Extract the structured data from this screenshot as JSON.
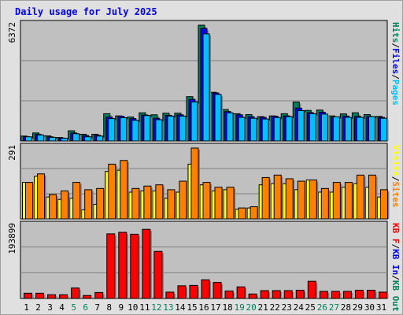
{
  "chart_data": {
    "title": "Daily usage for July 2025",
    "type": "bar",
    "categories": [
      "1",
      "2",
      "3",
      "4",
      "5",
      "6",
      "7",
      "8",
      "9",
      "10",
      "11",
      "12",
      "13",
      "14",
      "15",
      "16",
      "17",
      "18",
      "19",
      "20",
      "21",
      "22",
      "23",
      "24",
      "25",
      "26",
      "27",
      "28",
      "29",
      "30",
      "31"
    ],
    "weekend_categories": [
      "5",
      "6",
      "12",
      "13",
      "19",
      "20",
      "26",
      "27"
    ],
    "panels": [
      {
        "id": "top",
        "ymax_label": "6372",
        "ymax": 6372,
        "axis_labels": [
          "Hits",
          "/",
          "Files",
          "/",
          "Pages"
        ],
        "axis_label_colors": [
          "#00805c",
          "#000000",
          "#0000ff",
          "#000000",
          "#00c0ff"
        ],
        "series": [
          {
            "name": "Hits",
            "color": "#00805c",
            "values": [
              270,
              440,
              280,
              190,
              560,
              370,
              370,
              1500,
              1380,
              1320,
              1550,
              1440,
              1530,
              1530,
              2440,
              6372,
              2680,
              1730,
              1500,
              1450,
              1340,
              1380,
              1500,
              2140,
              1680,
              1700,
              1380,
              1490,
              1550,
              1450,
              1350
            ]
          },
          {
            "name": "Files",
            "color": "#0000ff",
            "values": [
              230,
              360,
              230,
              160,
              440,
              300,
              310,
              1320,
              1360,
              1230,
              1430,
              1250,
              1410,
              1440,
              2290,
              6190,
              2640,
              1620,
              1440,
              1330,
              1300,
              1360,
              1380,
              1810,
              1560,
              1580,
              1300,
              1370,
              1350,
              1350,
              1300
            ]
          },
          {
            "name": "Pages",
            "color": "#00c0ff",
            "values": [
              230,
              330,
              200,
              150,
              400,
              230,
              270,
              1230,
              1280,
              1140,
              1400,
              1170,
              1370,
              1370,
              2150,
              5900,
              2560,
              1550,
              1300,
              1250,
              1210,
              1290,
              1340,
              1670,
              1500,
              1480,
              1330,
              1300,
              1300,
              1340,
              1250
            ]
          }
        ]
      },
      {
        "id": "mid",
        "ymax_label": "291",
        "ymax": 291,
        "axis_labels": [
          "Visits",
          "/",
          "Sites"
        ],
        "axis_label_colors": [
          "#ffff00",
          "#000000",
          "#ff8000"
        ],
        "series": [
          {
            "name": "Visits",
            "color": "#ffff00",
            "values": [
              150,
              175,
              90,
              80,
              85,
              37,
              60,
              195,
              200,
              110,
              115,
              115,
              85,
              110,
              225,
              140,
              115,
              120,
              40,
              45,
              140,
              145,
              145,
              120,
              160,
              110,
              110,
              130,
              145,
              130,
              90
            ]
          },
          {
            "name": "Sites",
            "color": "#ff8000",
            "values": [
              150,
              185,
              100,
              115,
              150,
              120,
              125,
              225,
              240,
              125,
              135,
              140,
              120,
              155,
              291,
              150,
              130,
              130,
              45,
              50,
              170,
              180,
              165,
              155,
              160,
              125,
              150,
              150,
              180,
              180,
              120
            ]
          }
        ]
      },
      {
        "id": "bot",
        "ymax_label": "193899",
        "ymax": 193899,
        "axis_labels": [
          "KB F",
          "/",
          "KB In",
          "/",
          "KB Out"
        ],
        "axis_label_colors": [
          "#ff0000",
          "#000000",
          "#0000ff",
          "#000000",
          "#00805c"
        ],
        "series": [
          {
            "name": "KB F",
            "color": "#ff0000",
            "values": [
              14000,
              14000,
              10000,
              10000,
              28000,
              8000,
              16000,
              173000,
              177000,
              172000,
              185000,
              126000,
              17000,
              34000,
              35000,
              50000,
              43000,
              20000,
              31000,
              12000,
              21000,
              21000,
              21000,
              22000,
              46000,
              19000,
              19000,
              19000,
              22000,
              22000,
              17000
            ]
          }
        ]
      }
    ]
  }
}
